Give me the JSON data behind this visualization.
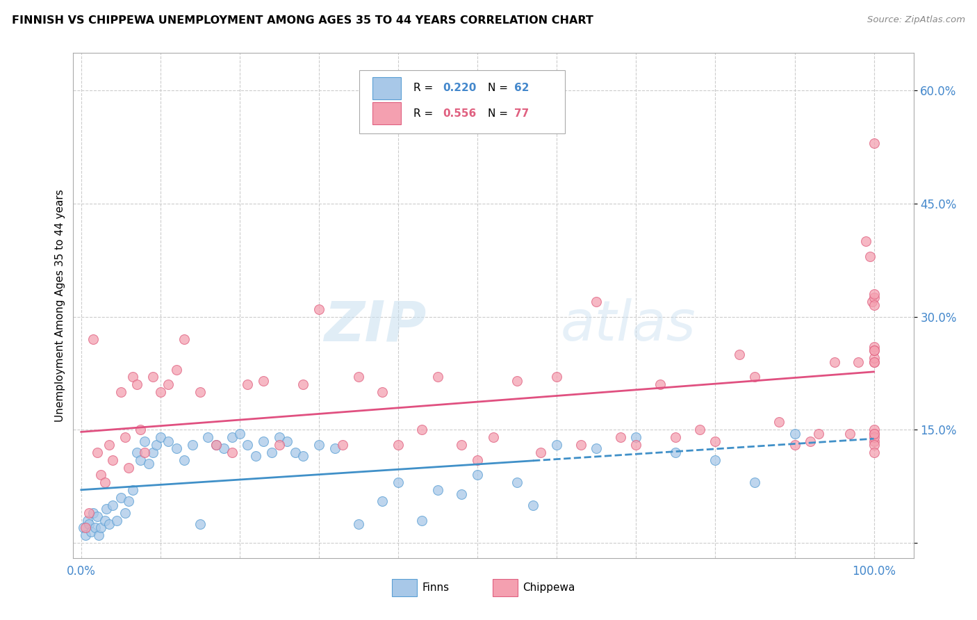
{
  "title": "FINNISH VS CHIPPEWA UNEMPLOYMENT AMONG AGES 35 TO 44 YEARS CORRELATION CHART",
  "source": "Source: ZipAtlas.com",
  "ylabel": "Unemployment Among Ages 35 to 44 years",
  "finns_R": 0.22,
  "finns_N": 62,
  "chippewa_R": 0.556,
  "chippewa_N": 77,
  "finns_color": "#a8c8e8",
  "chippewa_color": "#f4a0b0",
  "finns_edge_color": "#5a9fd4",
  "chippewa_edge_color": "#e06080",
  "finns_line_color": "#4090c8",
  "chippewa_line_color": "#e05080",
  "legend_blue": "#4488cc",
  "legend_pink": "#e06080",
  "watermark_color": "#ddeeff",
  "background_color": "#ffffff",
  "grid_color": "#cccccc",
  "finns_x": [
    0.3,
    0.5,
    0.8,
    1.0,
    1.2,
    1.5,
    1.8,
    2.0,
    2.2,
    2.5,
    3.0,
    3.2,
    3.5,
    4.0,
    4.5,
    5.0,
    5.5,
    6.0,
    6.5,
    7.0,
    7.5,
    8.0,
    8.5,
    9.0,
    9.5,
    10.0,
    11.0,
    12.0,
    13.0,
    14.0,
    15.0,
    16.0,
    17.0,
    18.0,
    19.0,
    20.0,
    21.0,
    22.0,
    23.0,
    24.0,
    25.0,
    26.0,
    27.0,
    28.0,
    30.0,
    32.0,
    35.0,
    38.0,
    40.0,
    43.0,
    45.0,
    48.0,
    50.0,
    55.0,
    57.0,
    60.0,
    65.0,
    70.0,
    75.0,
    80.0,
    85.0,
    90.0
  ],
  "finns_y": [
    2.0,
    1.0,
    3.0,
    2.5,
    1.5,
    4.0,
    2.0,
    3.5,
    1.0,
    2.0,
    3.0,
    4.5,
    2.5,
    5.0,
    3.0,
    6.0,
    4.0,
    5.5,
    7.0,
    12.0,
    11.0,
    13.5,
    10.5,
    12.0,
    13.0,
    14.0,
    13.5,
    12.5,
    11.0,
    13.0,
    2.5,
    14.0,
    13.0,
    12.5,
    14.0,
    14.5,
    13.0,
    11.5,
    13.5,
    12.0,
    14.0,
    13.5,
    12.0,
    11.5,
    13.0,
    12.5,
    2.5,
    5.5,
    8.0,
    3.0,
    7.0,
    6.5,
    9.0,
    8.0,
    5.0,
    13.0,
    12.5,
    14.0,
    12.0,
    11.0,
    8.0,
    14.5
  ],
  "chippewa_x": [
    0.5,
    1.0,
    1.5,
    2.0,
    2.5,
    3.0,
    3.5,
    4.0,
    5.0,
    5.5,
    6.0,
    6.5,
    7.0,
    7.5,
    8.0,
    9.0,
    10.0,
    11.0,
    12.0,
    13.0,
    15.0,
    17.0,
    19.0,
    21.0,
    23.0,
    25.0,
    28.0,
    30.0,
    33.0,
    35.0,
    38.0,
    40.0,
    43.0,
    45.0,
    48.0,
    50.0,
    52.0,
    55.0,
    58.0,
    60.0,
    63.0,
    65.0,
    68.0,
    70.0,
    73.0,
    75.0,
    78.0,
    80.0,
    83.0,
    85.0,
    88.0,
    90.0,
    92.0,
    93.0,
    95.0,
    97.0,
    98.0,
    99.0,
    99.5,
    99.8,
    100.0,
    100.0,
    100.0,
    100.0,
    100.0,
    100.0,
    100.0,
    100.0,
    100.0,
    100.0,
    100.0,
    100.0,
    100.0,
    100.0,
    100.0,
    100.0,
    100.0
  ],
  "chippewa_y": [
    2.0,
    4.0,
    27.0,
    12.0,
    9.0,
    8.0,
    13.0,
    11.0,
    20.0,
    14.0,
    10.0,
    22.0,
    21.0,
    15.0,
    12.0,
    22.0,
    20.0,
    21.0,
    23.0,
    27.0,
    20.0,
    13.0,
    12.0,
    21.0,
    21.5,
    13.0,
    21.0,
    31.0,
    13.0,
    22.0,
    20.0,
    13.0,
    15.0,
    22.0,
    13.0,
    11.0,
    14.0,
    21.5,
    12.0,
    22.0,
    13.0,
    32.0,
    14.0,
    13.0,
    21.0,
    14.0,
    15.0,
    13.5,
    25.0,
    22.0,
    16.0,
    13.0,
    13.5,
    14.5,
    24.0,
    14.5,
    24.0,
    40.0,
    38.0,
    32.0,
    32.5,
    13.5,
    14.5,
    15.0,
    53.0,
    24.0,
    14.0,
    24.5,
    26.0,
    25.5,
    31.5,
    33.0,
    13.0,
    24.0,
    14.5,
    12.0,
    25.5
  ]
}
